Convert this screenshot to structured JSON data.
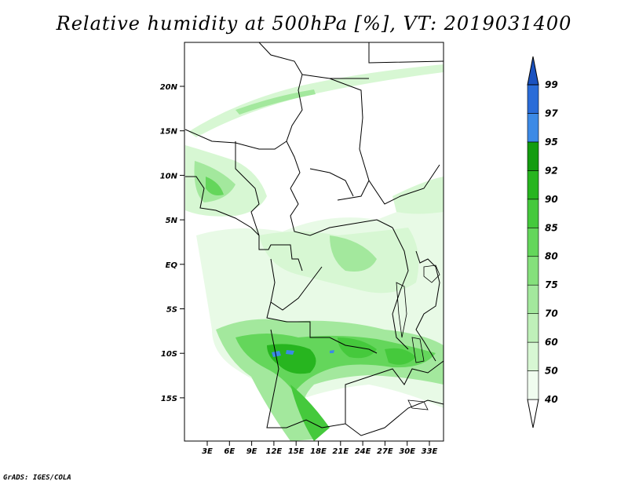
{
  "title": "Relative humidity at 500hPa [%], VT: 2019031400",
  "credit": "GrADS: IGES/COLA",
  "map": {
    "lat_ticks": [
      "20N",
      "15N",
      "10N",
      "5N",
      "EQ",
      "5S",
      "10S",
      "15S"
    ],
    "lon_ticks": [
      "3E",
      "6E",
      "9E",
      "12E",
      "15E",
      "18E",
      "21E",
      "24E",
      "27E",
      "30E",
      "33E"
    ]
  },
  "colorbar": {
    "levels": [
      "40",
      "50",
      "60",
      "70",
      "75",
      "80",
      "85",
      "90",
      "92",
      "95",
      "97",
      "99"
    ],
    "colors": [
      "#f0fcef",
      "#d7f7d3",
      "#bff0b9",
      "#a3e89d",
      "#85e07c",
      "#64d65b",
      "#45c93c",
      "#27b51f",
      "#139c0f",
      "#3c8ae6",
      "#2a6cd8",
      "#1a52c0"
    ]
  }
}
